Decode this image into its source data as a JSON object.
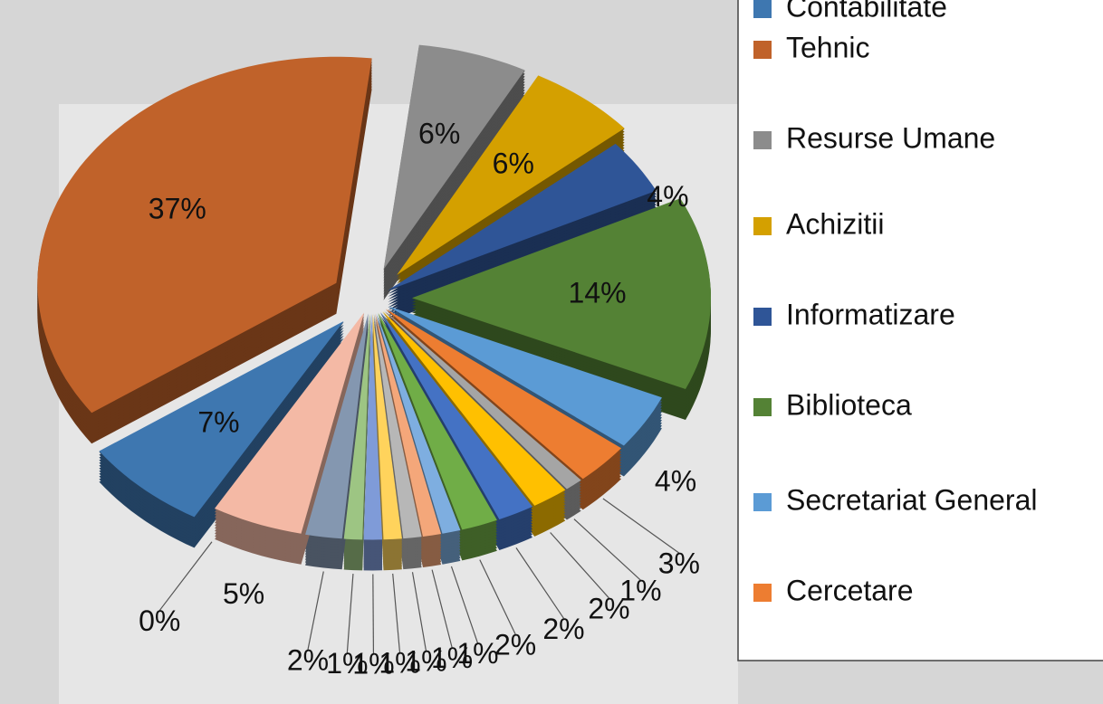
{
  "chart_data": {
    "type": "pie",
    "categories": [
      "Contabilitate",
      "Tehnic",
      "Resurse Umane",
      "Achizitii",
      "Informatizare",
      "Biblioteca",
      "Secretariat General",
      "Cercetare",
      null,
      null,
      null,
      null,
      null,
      null,
      null,
      null,
      null,
      null,
      null,
      null,
      null
    ],
    "values": [
      7,
      37,
      6,
      6,
      4,
      14,
      4,
      3,
      1,
      2,
      2,
      2,
      1,
      1,
      1,
      1,
      1,
      1,
      2,
      5,
      0
    ],
    "value_labels": [
      "7%",
      "37%",
      "6%",
      "6%",
      "4%",
      "14%",
      "4%",
      "3%",
      "1%",
      "2%",
      "2%",
      "2%",
      "1%",
      "1%",
      "1%",
      "1%",
      "1%",
      "1%",
      "2%",
      "5%",
      "0%"
    ],
    "colors": [
      "#3e77b0",
      "#c0622a",
      "#8c8c8c",
      "#d4a000",
      "#2f5597",
      "#548235",
      "#5b9bd5",
      "#ed7d31",
      "#a5a5a5",
      "#ffc000",
      "#4472c4",
      "#70ad47",
      "#7eaee0",
      "#f4a77a",
      "#b7b7b7",
      "#ffd35c",
      "#7f9bd8",
      "#9dc583",
      "#8497b0",
      "#f4b9a5",
      "#a0a0a0"
    ],
    "legend": "right"
  }
}
